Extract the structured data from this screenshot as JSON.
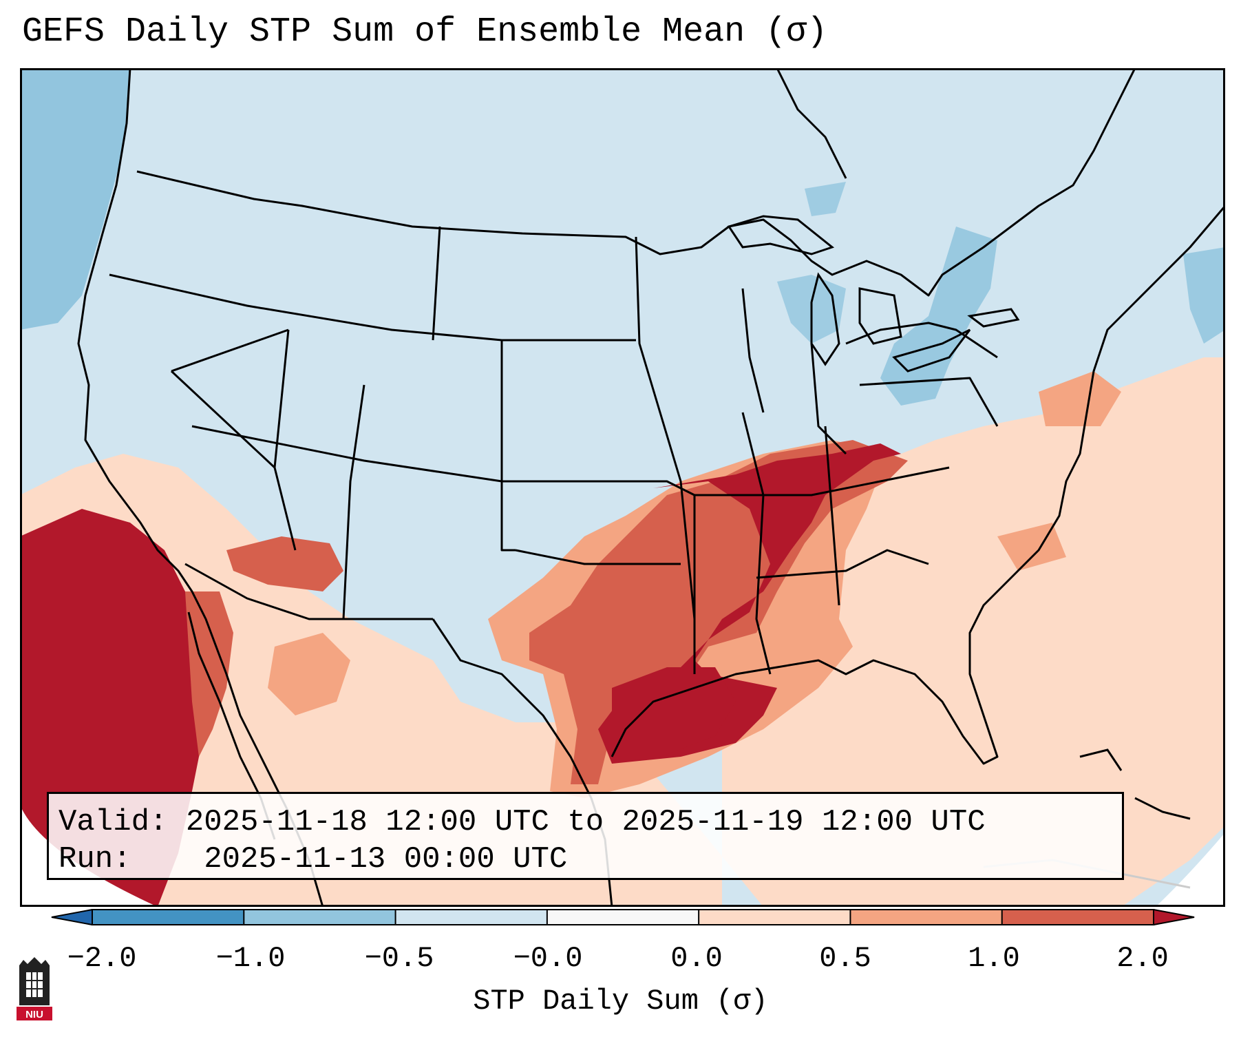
{
  "title": "GEFS Daily STP Sum of Ensemble Mean (σ)",
  "info": {
    "valid_label": "Valid:",
    "valid_value": "2025-11-18 12:00 UTC to 2025-11-19 12:00 UTC",
    "run_label": "Run:",
    "run_value": "2025-11-13 00:00 UTC"
  },
  "colorbar": {
    "label": "STP Daily Sum (σ)",
    "ticks": [
      "−2.0",
      "−1.0",
      "−0.5",
      "−0.0",
      "0.0",
      "0.5",
      "1.0",
      "2.0"
    ],
    "colors": [
      "#2166ac",
      "#4393c3",
      "#92c5de",
      "#d1e5f0",
      "#f7f7f7",
      "#fddbc7",
      "#f4a582",
      "#d6604d",
      "#b2182b"
    ],
    "extend": "both"
  },
  "map": {
    "background_color": "#d1e5f0",
    "region": "Contiguous United States",
    "border_color": "#000000"
  },
  "logo": {
    "text": "NIU",
    "icon": "niu-logo-icon"
  }
}
